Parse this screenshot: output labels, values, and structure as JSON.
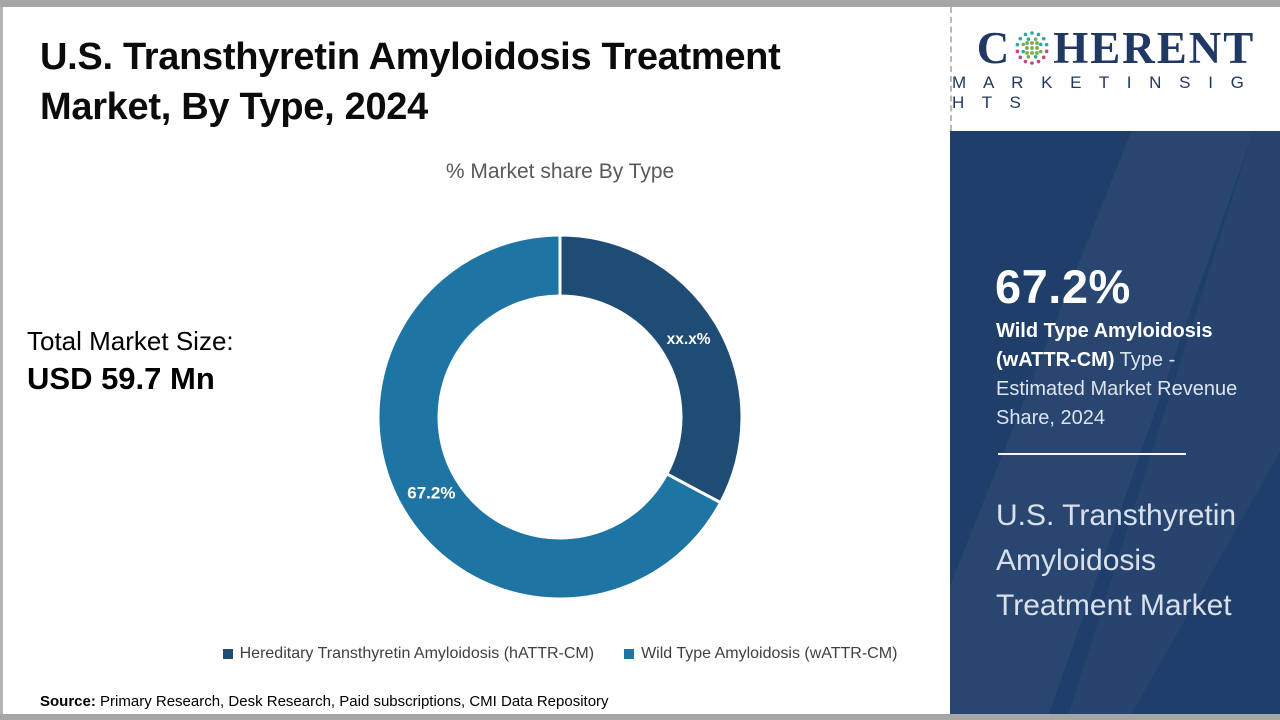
{
  "page": {
    "title_line1": "U.S. Transthyretin Amyloidosis Treatment",
    "title_line2": "Market, By Type, 2024",
    "total_label": "Total Market Size:",
    "total_value": "USD 59.7 Mn",
    "source_label": "Source:",
    "source_text": " Primary Research, Desk Research, Paid subscriptions, CMI Data Repository"
  },
  "chart_data": {
    "type": "pie",
    "donut": true,
    "title": "% Market share By Type",
    "legend_position": "bottom",
    "start_angle_deg": 0,
    "geometry": {
      "outer_radius": 182,
      "inner_radius": 121,
      "label_radius": 150,
      "separator_color": "#ffffff",
      "separator_width": 3
    },
    "slices": [
      {
        "label": "Hereditary Transthyretin Amyloidosis (hATTR-CM)",
        "value": 32.8,
        "display": "xx.x%",
        "color": "#1e4c74"
      },
      {
        "label": "Wild Type Amyloidosis (wATTR-CM)",
        "value": 67.2,
        "display": "67.2%",
        "color": "#1e75a3"
      }
    ]
  },
  "sidebar": {
    "background_color": "#203e6a",
    "logo": {
      "prefix": "C",
      "suffix": "HERENT",
      "tagline": "M A R K E T   I N S I G H T S",
      "brand_color": "#1f3864",
      "globe_colors": {
        "teal": "#2aa7a0",
        "green": "#76b043",
        "magenta": "#c5457c"
      }
    },
    "stat_value": "67.2%",
    "stat_bold": "Wild Type Amyloidosis (wATTR-CM)",
    "stat_rest": " Type - Estimated Market Revenue Share, 2024",
    "market_name": "U.S. Transthyretin Amyloidosis Treatment Market"
  }
}
